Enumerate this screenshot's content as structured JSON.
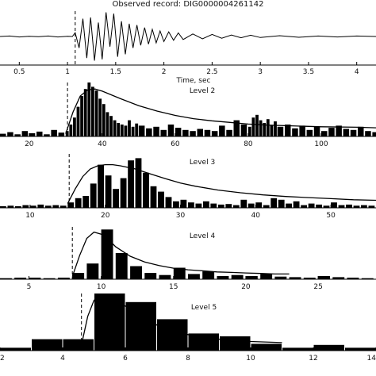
{
  "chart_data": [
    {
      "type": "line",
      "title": "Observed record: DIG0000004261142",
      "xlabel": "Time, sec",
      "xlim": [
        0.3,
        4.2
      ],
      "xticks": [
        "0.5",
        "1",
        "1.5",
        "2",
        "2.5",
        "3",
        "3.5",
        "4"
      ],
      "onset": 1.08,
      "series": [
        {
          "x": [
            0.3,
            0.4,
            0.5,
            0.6,
            0.7,
            0.8,
            0.9,
            1.0,
            1.05,
            1.08,
            1.12,
            1.16,
            1.2,
            1.24,
            1.28,
            1.32,
            1.36,
            1.4,
            1.44,
            1.48,
            1.52,
            1.56,
            1.6,
            1.64,
            1.68,
            1.72,
            1.76,
            1.8,
            1.84,
            1.88,
            1.92,
            1.96,
            2.0,
            2.05,
            2.1,
            2.15,
            2.2,
            2.3,
            2.4,
            2.5,
            2.6,
            2.7,
            2.8,
            2.9,
            3.0,
            3.2,
            3.4,
            3.6,
            3.8,
            4.0,
            4.2
          ],
          "y": [
            0.0,
            0.02,
            -0.02,
            0.01,
            -0.01,
            0.02,
            -0.02,
            0.01,
            0.0,
            0.15,
            -0.45,
            0.7,
            -0.85,
            0.75,
            -0.95,
            0.55,
            -0.9,
            0.95,
            -0.4,
            0.9,
            -0.8,
            0.6,
            -0.7,
            0.5,
            -0.45,
            0.45,
            -0.35,
            0.35,
            -0.3,
            0.28,
            -0.25,
            0.22,
            -0.2,
            0.18,
            -0.15,
            0.14,
            -0.12,
            0.1,
            -0.09,
            0.08,
            -0.07,
            0.06,
            -0.05,
            0.05,
            -0.04,
            0.03,
            -0.03,
            0.02,
            -0.02,
            0.02,
            0.0
          ]
        }
      ],
      "ylim": [
        -1,
        1
      ]
    },
    {
      "type": "bar",
      "title": "Level 2",
      "xlim": [
        12,
        115
      ],
      "xticks": [
        "20",
        "40",
        "60",
        "80",
        "100"
      ],
      "ylim": [
        0,
        1
      ],
      "onset": 30.5,
      "x": [
        12,
        14,
        16,
        18,
        20,
        22,
        24,
        26,
        28,
        30,
        31,
        32,
        33,
        34,
        35,
        36,
        37,
        38,
        39,
        40,
        41,
        42,
        43,
        44,
        45,
        46,
        47,
        48,
        49,
        50,
        52,
        54,
        56,
        58,
        60,
        62,
        64,
        66,
        68,
        70,
        72,
        74,
        76,
        78,
        80,
        81,
        82,
        83,
        84,
        85,
        86,
        87,
        88,
        90,
        92,
        94,
        96,
        98,
        100,
        102,
        104,
        106,
        108,
        110,
        112,
        114
      ],
      "values": [
        0.05,
        0.08,
        0.04,
        0.1,
        0.06,
        0.09,
        0.04,
        0.12,
        0.07,
        0.1,
        0.22,
        0.35,
        0.55,
        0.75,
        0.88,
        1.0,
        0.92,
        0.85,
        0.7,
        0.6,
        0.45,
        0.38,
        0.3,
        0.25,
        0.22,
        0.2,
        0.3,
        0.18,
        0.24,
        0.2,
        0.15,
        0.18,
        0.12,
        0.22,
        0.16,
        0.12,
        0.1,
        0.14,
        0.12,
        0.1,
        0.2,
        0.12,
        0.3,
        0.22,
        0.18,
        0.35,
        0.4,
        0.3,
        0.25,
        0.32,
        0.2,
        0.28,
        0.18,
        0.22,
        0.15,
        0.2,
        0.12,
        0.18,
        0.1,
        0.16,
        0.2,
        0.14,
        0.12,
        0.18,
        0.1,
        0.08
      ],
      "fit_x": [
        30,
        32,
        34,
        36,
        38,
        40,
        45,
        50,
        55,
        60,
        65,
        70,
        75,
        80,
        85,
        90,
        100,
        110,
        115
      ],
      "fit_y": [
        0.05,
        0.45,
        0.75,
        0.86,
        0.88,
        0.84,
        0.7,
        0.57,
        0.47,
        0.39,
        0.33,
        0.29,
        0.26,
        0.23,
        0.21,
        0.2,
        0.18,
        0.17,
        0.16
      ]
    },
    {
      "type": "bar",
      "title": "Level 3",
      "xlim": [
        6,
        56
      ],
      "xticks": [
        "10",
        "20",
        "30",
        "40",
        "50"
      ],
      "ylim": [
        0,
        1
      ],
      "onset": 15.2,
      "x": [
        6,
        7,
        8,
        9,
        10,
        11,
        12,
        13,
        14,
        15,
        16,
        17,
        18,
        19,
        20,
        21,
        22,
        23,
        24,
        25,
        26,
        27,
        28,
        29,
        30,
        31,
        32,
        33,
        34,
        35,
        36,
        37,
        38,
        39,
        40,
        41,
        42,
        43,
        44,
        45,
        46,
        47,
        48,
        49,
        50,
        51,
        52,
        53,
        54,
        55
      ],
      "values": [
        0.03,
        0.04,
        0.03,
        0.05,
        0.04,
        0.06,
        0.04,
        0.05,
        0.04,
        0.1,
        0.18,
        0.22,
        0.45,
        0.8,
        0.6,
        0.35,
        0.55,
        0.88,
        0.92,
        0.65,
        0.4,
        0.3,
        0.2,
        0.12,
        0.15,
        0.1,
        0.08,
        0.12,
        0.08,
        0.06,
        0.07,
        0.05,
        0.15,
        0.08,
        0.1,
        0.05,
        0.18,
        0.15,
        0.08,
        0.12,
        0.05,
        0.08,
        0.06,
        0.04,
        0.1,
        0.05,
        0.06,
        0.04,
        0.05,
        0.04
      ],
      "fit_x": [
        15,
        16,
        17,
        18,
        19,
        20,
        21,
        22,
        24,
        26,
        28,
        30,
        32,
        35,
        38,
        41,
        44,
        47,
        50,
        53,
        56
      ],
      "fit_y": [
        0.08,
        0.35,
        0.58,
        0.72,
        0.78,
        0.8,
        0.8,
        0.78,
        0.72,
        0.63,
        0.54,
        0.46,
        0.4,
        0.33,
        0.28,
        0.24,
        0.21,
        0.19,
        0.17,
        0.15,
        0.14
      ]
    },
    {
      "type": "bar",
      "title": "Level 4",
      "xlim": [
        3,
        29
      ],
      "xticks": [
        "5",
        "10",
        "15",
        "20",
        "25"
      ],
      "ylim": [
        0,
        1
      ],
      "onset": 8.0,
      "x": [
        3,
        4,
        5,
        6,
        7,
        8,
        9,
        10,
        11,
        12,
        13,
        14,
        15,
        16,
        17,
        18,
        19,
        20,
        21,
        22,
        23,
        24,
        25,
        26,
        27,
        28
      ],
      "values": [
        0.02,
        0.03,
        0.03,
        0.02,
        0.03,
        0.12,
        0.3,
        0.95,
        0.5,
        0.25,
        0.12,
        0.08,
        0.22,
        0.1,
        0.15,
        0.06,
        0.08,
        0.06,
        0.1,
        0.05,
        0.04,
        0.03,
        0.06,
        0.04,
        0.03,
        0.02
      ],
      "fit_x": [
        8,
        8.5,
        9,
        9.5,
        10,
        10.5,
        11,
        12,
        13,
        14,
        15,
        16,
        17,
        18,
        19,
        20,
        21,
        22,
        23
      ],
      "fit_y": [
        0.05,
        0.45,
        0.78,
        0.9,
        0.86,
        0.76,
        0.62,
        0.44,
        0.33,
        0.26,
        0.21,
        0.18,
        0.16,
        0.14,
        0.13,
        0.12,
        0.11,
        0.1,
        0.1
      ]
    },
    {
      "type": "bar",
      "title": "Level 5",
      "xlim": [
        2,
        14
      ],
      "xticks": [
        "2",
        "4",
        "6",
        "8",
        "10",
        "12",
        "14"
      ],
      "ylim": [
        0,
        1
      ],
      "onset": 4.6,
      "x": [
        2.5,
        3.5,
        4.5,
        5.5,
        6.5,
        7.5,
        8.5,
        9.5,
        10.5,
        11.5,
        12.5,
        13.5
      ],
      "values": [
        0.05,
        0.2,
        0.2,
        1.0,
        0.85,
        0.55,
        0.3,
        0.25,
        0.12,
        0.05,
        0.1,
        0.05
      ],
      "fit_x": [
        4.6,
        4.8,
        5.0,
        5.2,
        5.5,
        6.0,
        6.5,
        7.0,
        7.5,
        8.0,
        9.0,
        10.0,
        11.0
      ],
      "fit_y": [
        0.1,
        0.6,
        0.88,
        0.98,
        0.95,
        0.78,
        0.6,
        0.45,
        0.35,
        0.28,
        0.2,
        0.16,
        0.14
      ]
    }
  ]
}
